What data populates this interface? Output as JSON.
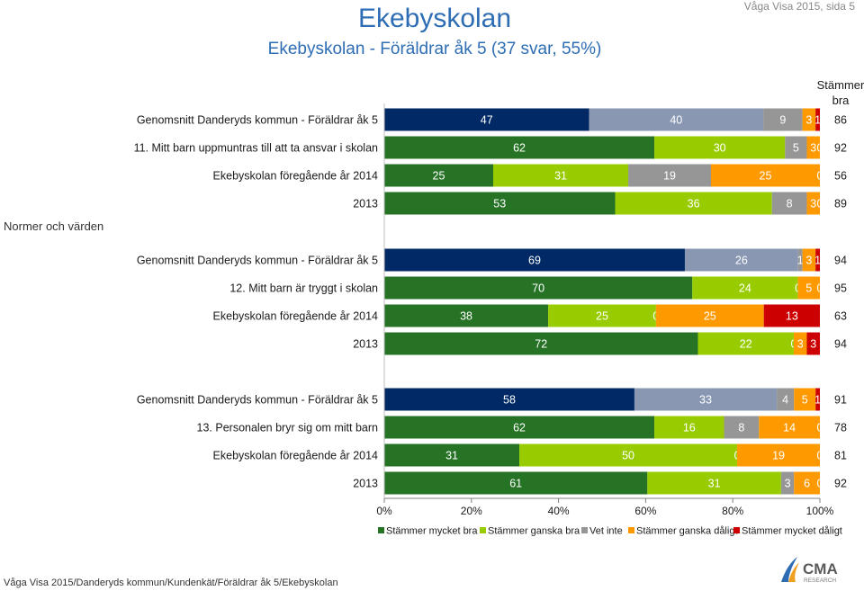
{
  "header": {
    "title": "Ekebyskolan",
    "subtitle": "Ekebyskolan - Föräldrar åk 5 (37 svar, 55%)",
    "page_ref": "Våga Visa 2015, sida 5"
  },
  "stammer_bra_header": "Stämmer bra",
  "section_label": "Normer och värden",
  "footer": "Våga Visa 2015/Danderyds kommun/Kundenkät/Föräldrar åk 5/Ekebyskolan",
  "logo": {
    "text": "CMA",
    "subtext": "RESEARCH"
  },
  "colors": {
    "s1": "#002966",
    "s1_main": "#267326",
    "s2": "#8a97b3",
    "s2_main": "#99cc00",
    "s3": "#969696",
    "s4": "#ff9900",
    "s5": "#cc0000"
  },
  "chart_data": {
    "type": "bar",
    "orientation": "horizontal-stacked-100",
    "xlim": [
      0,
      100
    ],
    "x_ticks": [
      "0%",
      "20%",
      "40%",
      "60%",
      "80%",
      "100%"
    ],
    "legend": {
      "position": "bottom",
      "entries": [
        "Stämmer mycket bra",
        "Stämmer ganska bra",
        "Vet inte",
        "Stämmer ganska dåligt",
        "Stämmer mycket dåligt"
      ]
    },
    "groups": [
      {
        "rows": [
          {
            "label": "Genomsnitt Danderyds kommun - Föräldrar åk 5",
            "kind": "kommun",
            "values": [
              47,
              40,
              9,
              3,
              1
            ],
            "labels": [
              "47",
              "40",
              "9",
              "3",
              "1"
            ],
            "stammer_bra": "86"
          },
          {
            "label": "11. Mitt barn uppmuntras till att ta ansvar i skolan",
            "kind": "main",
            "values": [
              62,
              30,
              5,
              3,
              0
            ],
            "labels": [
              "62",
              "30",
              "5",
              "3",
              "0"
            ],
            "stammer_bra": "92"
          },
          {
            "label": "Ekebyskolan föregående år 2014",
            "kind": "main",
            "values": [
              25,
              31,
              19,
              25,
              0
            ],
            "labels": [
              "25",
              "31",
              "19",
              "25",
              "0"
            ],
            "stammer_bra": "56"
          },
          {
            "label": "2013",
            "kind": "main",
            "values": [
              53,
              36,
              8,
              3,
              0
            ],
            "labels": [
              "53",
              "36",
              "8",
              "3",
              "0"
            ],
            "stammer_bra": "89"
          }
        ]
      },
      {
        "rows": [
          {
            "label": "Genomsnitt Danderyds kommun - Föräldrar åk 5",
            "kind": "kommun",
            "values": [
              69,
              26,
              1,
              3,
              1
            ],
            "labels": [
              "69",
              "26",
              "1",
              "3",
              "1"
            ],
            "stammer_bra": "94"
          },
          {
            "label": "12. Mitt barn är tryggt i skolan",
            "kind": "main",
            "values": [
              70,
              24,
              0,
              5,
              0
            ],
            "labels": [
              "70",
              "24",
              "0",
              "5",
              "0"
            ],
            "stammer_bra": "95"
          },
          {
            "label": "Ekebyskolan föregående år 2014",
            "kind": "main",
            "values": [
              38,
              25,
              0,
              25,
              13
            ],
            "labels": [
              "38",
              "25",
              "0",
              "25",
              "13"
            ],
            "stammer_bra": "63"
          },
          {
            "label": "2013",
            "kind": "main",
            "values": [
              72,
              22,
              0,
              3,
              3
            ],
            "labels": [
              "72",
              "22",
              "0",
              "3",
              "3"
            ],
            "stammer_bra": "94"
          }
        ]
      },
      {
        "rows": [
          {
            "label": "Genomsnitt Danderyds kommun - Föräldrar åk 5",
            "kind": "kommun",
            "values": [
              58,
              33,
              4,
              5,
              1
            ],
            "labels": [
              "58",
              "33",
              "4",
              "5",
              "1"
            ],
            "stammer_bra": "91"
          },
          {
            "label": "13. Personalen bryr sig om mitt barn",
            "kind": "main",
            "values": [
              62,
              16,
              8,
              14,
              0
            ],
            "labels": [
              "62",
              "16",
              "8",
              "14",
              "0"
            ],
            "stammer_bra": "78"
          },
          {
            "label": "Ekebyskolan föregående år 2014",
            "kind": "main",
            "values": [
              31,
              50,
              0,
              19,
              0
            ],
            "labels": [
              "31",
              "50",
              "0",
              "19",
              "0"
            ],
            "stammer_bra": "81"
          },
          {
            "label": "2013",
            "kind": "main",
            "values": [
              61,
              31,
              3,
              6,
              0
            ],
            "labels": [
              "61",
              "31",
              "3",
              "6",
              "0"
            ],
            "stammer_bra": "92"
          }
        ]
      }
    ]
  }
}
